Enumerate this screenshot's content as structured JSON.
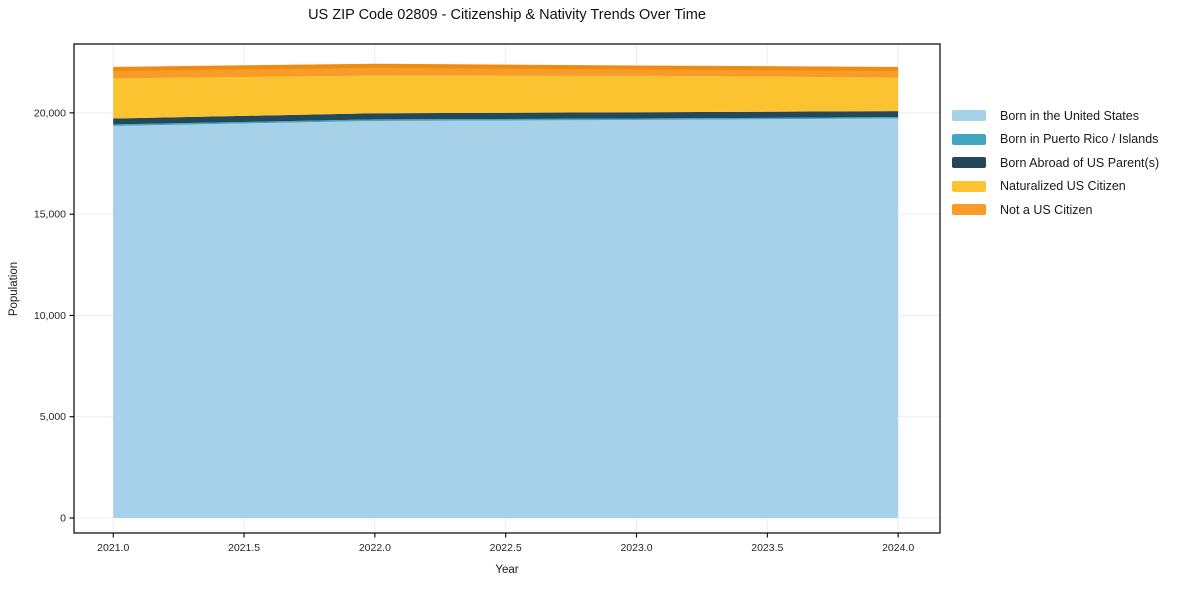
{
  "figure": {
    "background": "#ffffff"
  },
  "colors": {
    "grid": "#ececec",
    "spine": "#000000",
    "tick": "#000000",
    "tick_text": "#262626",
    "text": "#1a1a1a"
  },
  "chart_data": {
    "type": "area",
    "stacked": true,
    "title": "US ZIP Code 02809 - Citizenship & Nativity Trends Over Time",
    "xlabel": "Year",
    "ylabel": "Population",
    "x": [
      2021,
      2022,
      2023,
      2024
    ],
    "series": [
      {
        "name": "Born in the United States",
        "color": "#a7d1e8",
        "values": [
          19350,
          19600,
          19650,
          19720
        ]
      },
      {
        "name": "Born in Puerto Rico / Islands",
        "color": "#43a7c4",
        "values": [
          80,
          80,
          70,
          70
        ]
      },
      {
        "name": "Born Abroad of US Parent(s)",
        "color": "#24485a",
        "values": [
          290,
          300,
          310,
          300
        ]
      },
      {
        "name": "Naturalized US Citizen",
        "color": "#fcc330",
        "values": [
          1980,
          1860,
          1800,
          1650
        ]
      },
      {
        "name": "Not a US Citizen",
        "color": "#f89b27",
        "edge_color": "#ee8b12",
        "values": [
          470,
          490,
          410,
          430
        ]
      }
    ],
    "totals": [
      22170,
      22330,
      22240,
      22170
    ],
    "xticks": {
      "values": [
        2021.0,
        2021.5,
        2022.0,
        2022.5,
        2023.0,
        2023.5,
        2024.0
      ],
      "labels": [
        "2021.0",
        "2021.5",
        "2022.0",
        "2022.5",
        "2023.0",
        "2023.5",
        "2024.0"
      ]
    },
    "yticks": {
      "values": [
        0,
        5000,
        10000,
        15000,
        20000
      ],
      "labels": [
        "0",
        "5,000",
        "10,000",
        "15,000",
        "20,000"
      ]
    },
    "xlim": [
      2020.85,
      2024.16
    ],
    "ylim": [
      -740,
      23400
    ],
    "grid": true,
    "legend_position": "right-outside"
  }
}
